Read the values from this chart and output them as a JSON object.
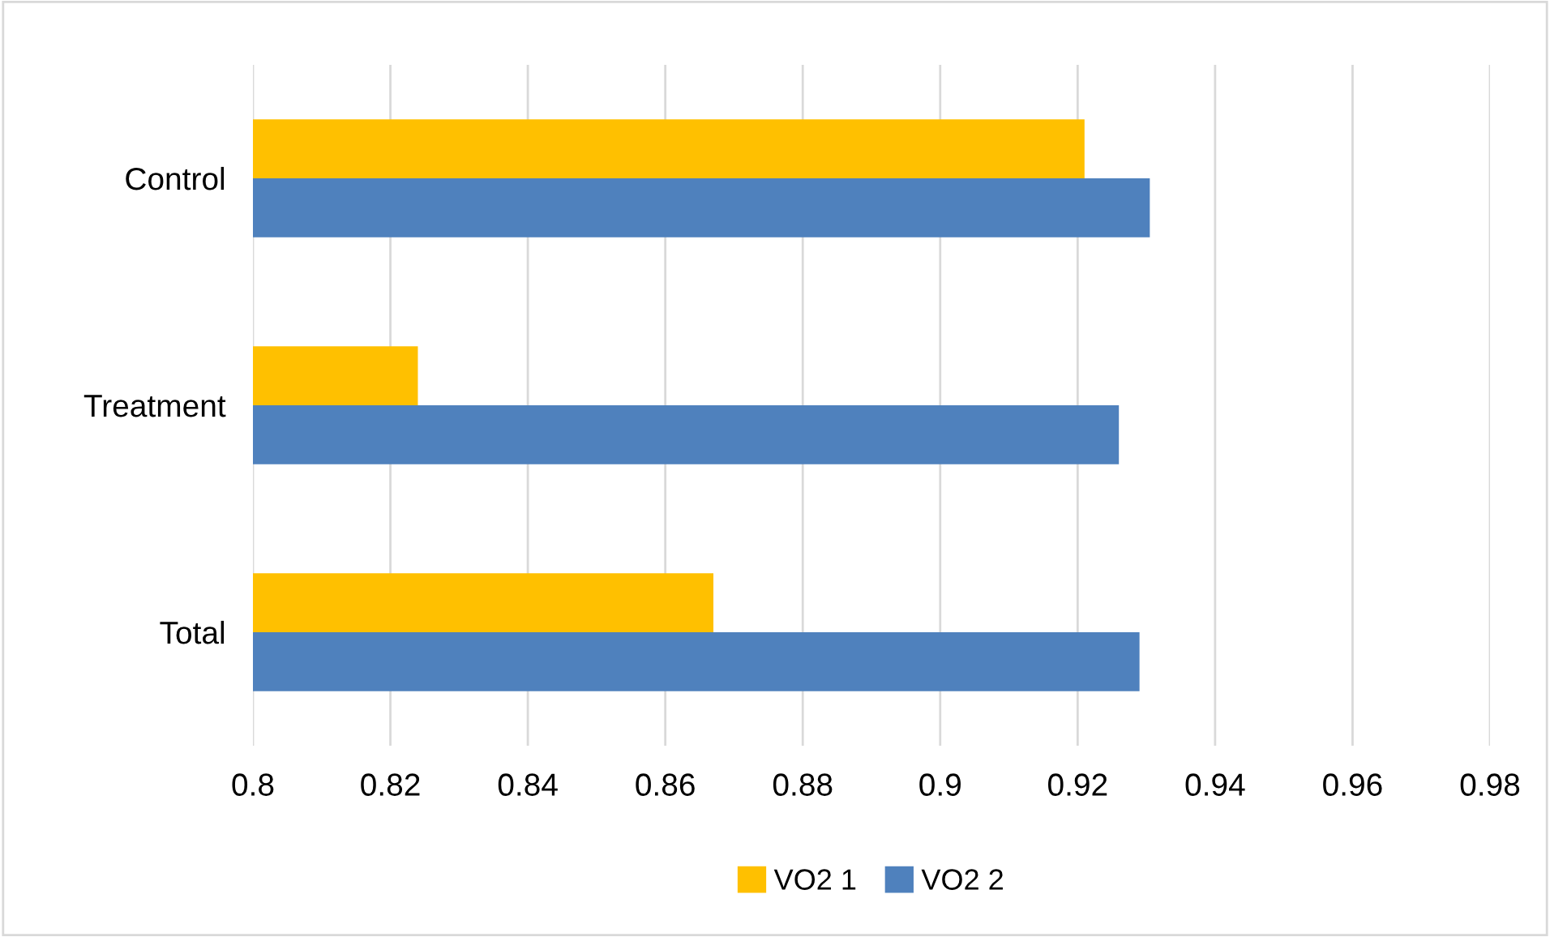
{
  "chart_data": {
    "type": "bar",
    "orientation": "horizontal",
    "categories": [
      "Control",
      "Treatment",
      "Total"
    ],
    "series": [
      {
        "name": "VO2 1",
        "color": "#ffc000",
        "values": [
          0.921,
          0.824,
          0.867
        ]
      },
      {
        "name": "VO2 2",
        "color": "#4f81bd",
        "values": [
          0.9305,
          0.926,
          0.929
        ]
      }
    ],
    "xlim": [
      0.8,
      0.98
    ],
    "xticks": [
      0.8,
      0.82,
      0.84,
      0.86,
      0.88,
      0.9,
      0.92,
      0.94,
      0.96,
      0.98
    ],
    "grid": "x",
    "legend": "bottom"
  }
}
